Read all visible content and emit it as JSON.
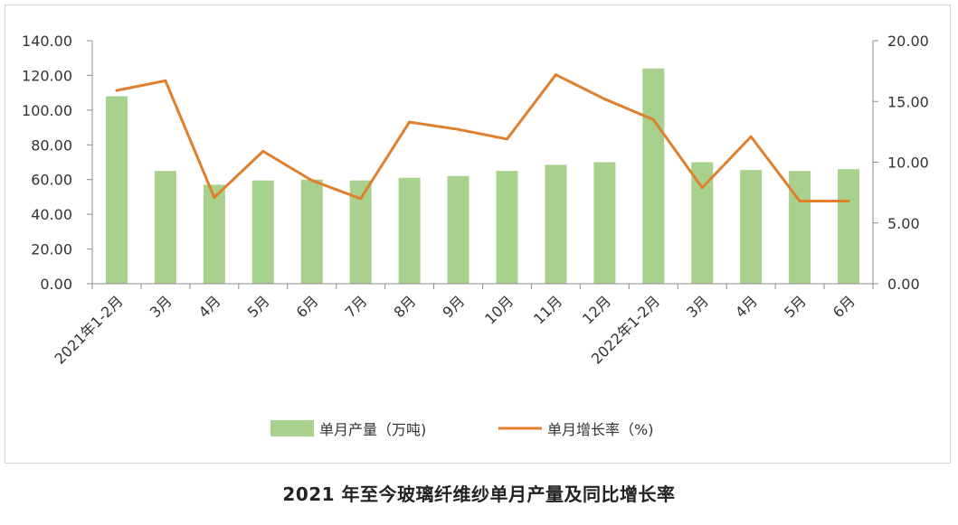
{
  "chart_data": {
    "type": "bar+line",
    "title": "2021 年至今玻璃纤维纱单月产量及同比增长率",
    "categories": [
      "2021年1-2月",
      "3月",
      "4月",
      "5月",
      "6月",
      "7月",
      "8月",
      "9月",
      "10月",
      "11月",
      "12月",
      "2022年1-2月",
      "3月",
      "4月",
      "5月",
      "6月"
    ],
    "series": [
      {
        "name": "单月产量（万吨)",
        "type": "bar",
        "axis": "left",
        "values": [
          108,
          65,
          57,
          59.5,
          60,
          59.5,
          61,
          62,
          65,
          68.5,
          70,
          124,
          70,
          65.5,
          65,
          66
        ]
      },
      {
        "name": "单月增长率（%)",
        "type": "line",
        "axis": "right",
        "values": [
          15.9,
          16.7,
          7.1,
          10.9,
          8.5,
          7.0,
          13.3,
          12.7,
          11.9,
          17.2,
          15.2,
          13.5,
          7.9,
          12.1,
          6.8,
          6.8
        ]
      }
    ],
    "y_left": {
      "ylim": [
        0,
        140
      ],
      "ticks": [
        "0.00",
        "20.00",
        "40.00",
        "60.00",
        "80.00",
        "100.00",
        "120.00",
        "140.00"
      ]
    },
    "y_right": {
      "ylim": [
        0,
        20
      ],
      "ticks": [
        "0.00",
        "5.00",
        "10.00",
        "15.00",
        "20.00"
      ]
    },
    "grid": false,
    "legend_position": "bottom",
    "colors": {
      "bar": "#a9d18e",
      "line": "#e07f2d",
      "axis": "#8c8c8c",
      "text": "#333333"
    }
  }
}
